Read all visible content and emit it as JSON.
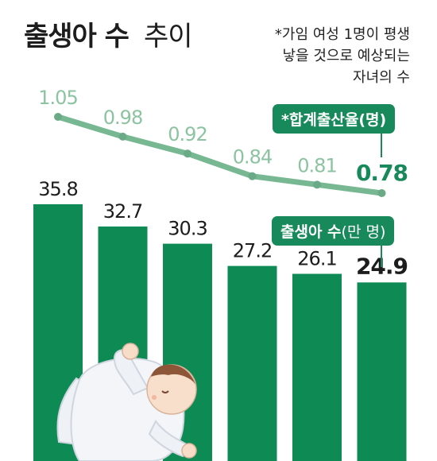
{
  "header": {
    "title_bold": "출생아 수",
    "title_light": "추이",
    "note_lines": [
      "*가임 여성 1명이 평생",
      "낳을 것으로 예상되는",
      "자녀의 수"
    ]
  },
  "legend": {
    "line_label": "*합계출산율(명)",
    "bar_label_bold": "출생아 수",
    "bar_label_light": "(만 명)"
  },
  "colors": {
    "bar": "#0e8a55",
    "line": "#77b893",
    "line_label": "#8cc3a0",
    "emphasis": "#18895a"
  },
  "chart_data": [
    {
      "type": "line",
      "series": [
        {
          "name": "합계출산율(명)",
          "values": [
            1.05,
            0.98,
            0.92,
            0.84,
            0.81,
            0.78
          ]
        }
      ],
      "ylim": [
        0.7,
        1.1
      ]
    },
    {
      "type": "bar",
      "series": [
        {
          "name": "출생아 수(만 명)",
          "values": [
            35.8,
            32.7,
            30.3,
            27.2,
            26.1,
            24.9
          ]
        }
      ],
      "ylim": [
        0,
        40
      ]
    }
  ]
}
